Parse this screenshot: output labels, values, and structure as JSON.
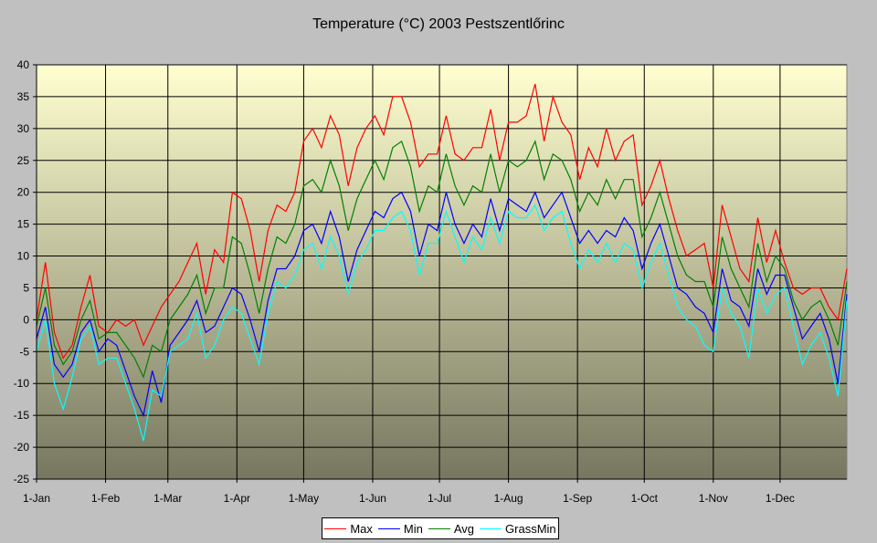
{
  "chart_data": {
    "type": "line",
    "title": "Temperature (°C) 2003 Pestszentlőrinc",
    "xlabel": "",
    "ylabel": "",
    "ylim": [
      -25,
      40
    ],
    "yticks": [
      -25,
      -20,
      -15,
      -10,
      -5,
      0,
      5,
      10,
      15,
      20,
      25,
      30,
      35,
      40
    ],
    "xlim": [
      "2003-01-01",
      "2003-12-31"
    ],
    "xticks": [
      {
        "date": "2003-01-01",
        "label": "1-Jan"
      },
      {
        "date": "2003-02-01",
        "label": "1-Feb"
      },
      {
        "date": "2003-03-01",
        "label": "1-Mar"
      },
      {
        "date": "2003-04-01",
        "label": "1-Apr"
      },
      {
        "date": "2003-05-01",
        "label": "1-May"
      },
      {
        "date": "2003-06-01",
        "label": "1-Jun"
      },
      {
        "date": "2003-07-01",
        "label": "1-Jul"
      },
      {
        "date": "2003-08-01",
        "label": "1-Aug"
      },
      {
        "date": "2003-09-01",
        "label": "1-Sep"
      },
      {
        "date": "2003-10-01",
        "label": "1-Oct"
      },
      {
        "date": "2003-11-01",
        "label": "1-Nov"
      },
      {
        "date": "2003-12-01",
        "label": "1-Dec"
      }
    ],
    "grid": true,
    "legend_position": "bottom",
    "background_gradient": [
      "#ffffd0",
      "#777760"
    ],
    "x": [
      "2003-01-01",
      "2003-01-05",
      "2003-01-09",
      "2003-01-13",
      "2003-01-17",
      "2003-01-21",
      "2003-01-25",
      "2003-01-29",
      "2003-02-02",
      "2003-02-06",
      "2003-02-10",
      "2003-02-14",
      "2003-02-18",
      "2003-02-22",
      "2003-02-26",
      "2003-03-02",
      "2003-03-06",
      "2003-03-10",
      "2003-03-14",
      "2003-03-18",
      "2003-03-22",
      "2003-03-26",
      "2003-03-30",
      "2003-04-03",
      "2003-04-07",
      "2003-04-11",
      "2003-04-15",
      "2003-04-19",
      "2003-04-23",
      "2003-04-27",
      "2003-05-01",
      "2003-05-05",
      "2003-05-09",
      "2003-05-13",
      "2003-05-17",
      "2003-05-21",
      "2003-05-25",
      "2003-05-29",
      "2003-06-02",
      "2003-06-06",
      "2003-06-10",
      "2003-06-14",
      "2003-06-18",
      "2003-06-22",
      "2003-06-26",
      "2003-06-30",
      "2003-07-04",
      "2003-07-08",
      "2003-07-12",
      "2003-07-16",
      "2003-07-20",
      "2003-07-24",
      "2003-07-28",
      "2003-08-01",
      "2003-08-05",
      "2003-08-09",
      "2003-08-13",
      "2003-08-17",
      "2003-08-21",
      "2003-08-25",
      "2003-08-29",
      "2003-09-02",
      "2003-09-06",
      "2003-09-10",
      "2003-09-14",
      "2003-09-18",
      "2003-09-22",
      "2003-09-26",
      "2003-09-30",
      "2003-10-04",
      "2003-10-08",
      "2003-10-12",
      "2003-10-16",
      "2003-10-20",
      "2003-10-24",
      "2003-10-28",
      "2003-11-01",
      "2003-11-05",
      "2003-11-09",
      "2003-11-13",
      "2003-11-17",
      "2003-11-21",
      "2003-11-25",
      "2003-11-29",
      "2003-12-03",
      "2003-12-07",
      "2003-12-11",
      "2003-12-15",
      "2003-12-19",
      "2003-12-23",
      "2003-12-27",
      "2003-12-31"
    ],
    "series": [
      {
        "name": "Max",
        "color": "#ff0000",
        "values": [
          0,
          9,
          -2,
          -6,
          -4,
          2,
          7,
          -1,
          -2,
          0,
          -1,
          0,
          -4,
          -1,
          2,
          4,
          6,
          9,
          12,
          4,
          11,
          9,
          20,
          19,
          14,
          6,
          14,
          18,
          17,
          20,
          28,
          30,
          27,
          32,
          29,
          21,
          27,
          30,
          32,
          29,
          35,
          35,
          31,
          24,
          26,
          26,
          32,
          26,
          25,
          27,
          27,
          33,
          25,
          31,
          31,
          32,
          37,
          28,
          35,
          31,
          29,
          22,
          27,
          24,
          30,
          25,
          28,
          29,
          18,
          21,
          25,
          19,
          14,
          10,
          11,
          12,
          5,
          18,
          13,
          8,
          6,
          16,
          9,
          14,
          9,
          5,
          4,
          5,
          5,
          2,
          0,
          8
        ]
      },
      {
        "name": "Min",
        "color": "#0000ff",
        "values": [
          -3,
          2,
          -7,
          -9,
          -7,
          -2,
          0,
          -5,
          -3,
          -4,
          -8,
          -12,
          -15,
          -8,
          -13,
          -4,
          -2,
          0,
          3,
          -2,
          -1,
          2,
          5,
          4,
          0,
          -5,
          3,
          8,
          8,
          10,
          14,
          15,
          12,
          17,
          13,
          6,
          11,
          14,
          17,
          16,
          19,
          20,
          17,
          10,
          15,
          14,
          20,
          15,
          12,
          15,
          13,
          19,
          14,
          19,
          18,
          17,
          20,
          16,
          18,
          20,
          16,
          12,
          14,
          12,
          14,
          13,
          16,
          14,
          8,
          12,
          15,
          10,
          5,
          4,
          2,
          1,
          -2,
          8,
          3,
          2,
          -1,
          8,
          4,
          7,
          7,
          2,
          -3,
          -1,
          1,
          -3,
          -10,
          4
        ]
      },
      {
        "name": "Avg",
        "color": "#008000",
        "values": [
          -1,
          5,
          -4,
          -7,
          -5,
          0,
          3,
          -3,
          -2,
          -2,
          -4,
          -6,
          -9,
          -4,
          -5,
          0,
          2,
          4,
          7,
          1,
          5,
          5,
          13,
          12,
          7,
          1,
          8,
          13,
          12,
          15,
          21,
          22,
          20,
          25,
          21,
          14,
          19,
          22,
          25,
          22,
          27,
          28,
          24,
          17,
          21,
          20,
          26,
          21,
          18,
          21,
          20,
          26,
          20,
          25,
          24,
          25,
          28,
          22,
          26,
          25,
          22,
          17,
          20,
          18,
          22,
          19,
          22,
          22,
          13,
          16,
          20,
          15,
          10,
          7,
          6,
          6,
          2,
          13,
          8,
          5,
          2,
          12,
          6,
          10,
          8,
          3,
          0,
          2,
          3,
          0,
          -4,
          6
        ]
      },
      {
        "name": "GrassMin",
        "color": "#00ffff",
        "values": [
          -5,
          0,
          -10,
          -14,
          -9,
          -3,
          -1,
          -7,
          -6,
          -6,
          -10,
          -14,
          -19,
          -11,
          -12,
          -5,
          -4,
          -3,
          1,
          -6,
          -4,
          0,
          2,
          1,
          -3,
          -7,
          1,
          6,
          5,
          7,
          11,
          12,
          8,
          13,
          10,
          4,
          9,
          11,
          14,
          14,
          16,
          17,
          14,
          7,
          12,
          12,
          17,
          13,
          9,
          13,
          11,
          16,
          12,
          17,
          16,
          16,
          18,
          14,
          16,
          17,
          12,
          8,
          11,
          9,
          12,
          9,
          12,
          11,
          5,
          9,
          12,
          7,
          2,
          0,
          -1,
          -4,
          -5,
          5,
          1,
          -1,
          -6,
          5,
          1,
          4,
          5,
          -1,
          -7,
          -4,
          -2,
          -6,
          -12,
          3
        ]
      }
    ]
  }
}
